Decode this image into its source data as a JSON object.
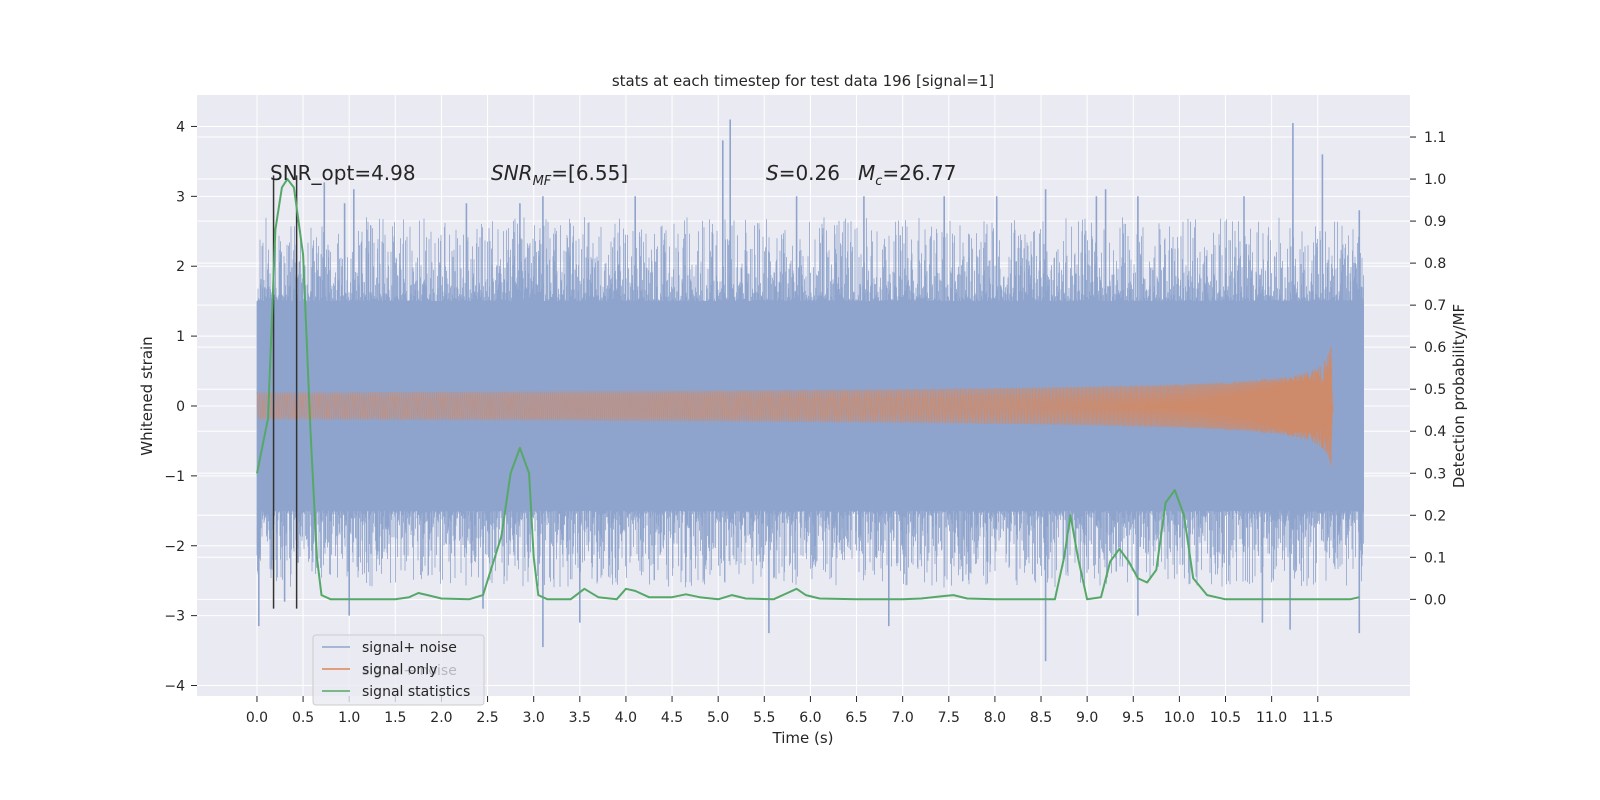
{
  "chart_data": {
    "type": "line",
    "title": "stats at each timestep for test data 196 [signal=1]",
    "xlabel": "Time (s)",
    "ylabel": "Whitened strain",
    "y2label": "Detection probability/MF",
    "xlim": [
      -0.65,
      12.5
    ],
    "ylim": [
      -4.15,
      4.45
    ],
    "y2lim": [
      -0.23,
      1.2
    ],
    "x_ticks": [
      "0.0",
      "0.5",
      "1.0",
      "1.5",
      "2.0",
      "2.5",
      "3.0",
      "3.5",
      "4.0",
      "4.5",
      "5.0",
      "5.5",
      "6.0",
      "6.5",
      "7.0",
      "7.5",
      "8.0",
      "8.5",
      "9.0",
      "9.5",
      "10.0",
      "10.5",
      "11.0",
      "11.5"
    ],
    "y_ticks": [
      "4",
      "3",
      "2",
      "1",
      "0",
      "−1",
      "−2",
      "−3",
      "−4"
    ],
    "y2_ticks": [
      "1.1",
      "1.0",
      "0.9",
      "0.8",
      "0.7",
      "0.6",
      "0.5",
      "0.4",
      "0.3",
      "0.2",
      "0.1",
      "0.0"
    ],
    "grid": true,
    "legend_placement": "lower-left",
    "annotations": {
      "snr_opt": "SNR_opt=4.98",
      "snr_mf_base": "SNR",
      "snr_mf_sub": "MF",
      "snr_mf_val": "=[6.55]",
      "s_base": "S",
      "s_val": "=0.26",
      "mc_base": "M",
      "mc_sub": "c",
      "mc_val": "=26.77"
    },
    "series": [
      {
        "name": "signal+ noise",
        "color": "#8fa4cc",
        "x_range": [
          0.0,
          12.0
        ],
        "envelope": [
          -1.5,
          1.5
        ],
        "peak_highs": [
          [
            0.73,
            3.2
          ],
          [
            0.95,
            2.9
          ],
          [
            1.05,
            3.1
          ],
          [
            2.27,
            2.9
          ],
          [
            2.85,
            2.9
          ],
          [
            3.1,
            3.0
          ],
          [
            4.1,
            3.0
          ],
          [
            5.05,
            3.8
          ],
          [
            5.13,
            4.1
          ],
          [
            5.85,
            3.0
          ],
          [
            6.58,
            3.0
          ],
          [
            7.45,
            3.0
          ],
          [
            8.02,
            3.0
          ],
          [
            8.55,
            3.1
          ],
          [
            9.1,
            3.0
          ],
          [
            9.2,
            3.1
          ],
          [
            9.55,
            3.0
          ],
          [
            10.7,
            3.0
          ],
          [
            11.23,
            4.05
          ],
          [
            11.55,
            3.6
          ],
          [
            11.95,
            2.8
          ]
        ],
        "peak_lows": [
          [
            0.02,
            -3.15
          ],
          [
            0.3,
            -2.8
          ],
          [
            1.0,
            -3.0
          ],
          [
            2.45,
            -2.9
          ],
          [
            3.1,
            -3.45
          ],
          [
            3.5,
            -3.1
          ],
          [
            5.55,
            -3.25
          ],
          [
            6.85,
            -3.15
          ],
          [
            8.55,
            -3.65
          ],
          [
            9.55,
            -3.0
          ],
          [
            10.9,
            -3.1
          ],
          [
            11.2,
            -3.2
          ],
          [
            11.95,
            -3.25
          ]
        ]
      },
      {
        "name": "signal only",
        "color": "#dd8452",
        "x_range": [
          0.0,
          11.67
        ],
        "chirp_peak_time": 11.65,
        "max_amplitude": 1.0
      },
      {
        "name": "signal statistics",
        "color": "#55a868",
        "axis": "y2",
        "points": [
          [
            0.0,
            0.3
          ],
          [
            0.12,
            0.43
          ],
          [
            0.2,
            0.88
          ],
          [
            0.27,
            0.98
          ],
          [
            0.33,
            1.0
          ],
          [
            0.4,
            0.98
          ],
          [
            0.5,
            0.82
          ],
          [
            0.58,
            0.4
          ],
          [
            0.65,
            0.1
          ],
          [
            0.7,
            0.01
          ],
          [
            0.8,
            0.0
          ],
          [
            1.0,
            0.0
          ],
          [
            1.5,
            0.0
          ],
          [
            1.65,
            0.005
          ],
          [
            1.75,
            0.015
          ],
          [
            1.85,
            0.01
          ],
          [
            2.0,
            0.002
          ],
          [
            2.3,
            0.0
          ],
          [
            2.45,
            0.01
          ],
          [
            2.55,
            0.08
          ],
          [
            2.65,
            0.15
          ],
          [
            2.75,
            0.3
          ],
          [
            2.85,
            0.36
          ],
          [
            2.95,
            0.3
          ],
          [
            3.0,
            0.1
          ],
          [
            3.05,
            0.01
          ],
          [
            3.15,
            0.0
          ],
          [
            3.4,
            0.0
          ],
          [
            3.55,
            0.025
          ],
          [
            3.7,
            0.005
          ],
          [
            3.9,
            0.0
          ],
          [
            4.0,
            0.025
          ],
          [
            4.1,
            0.02
          ],
          [
            4.25,
            0.005
          ],
          [
            4.5,
            0.005
          ],
          [
            4.65,
            0.012
          ],
          [
            4.8,
            0.005
          ],
          [
            5.0,
            0.0
          ],
          [
            5.15,
            0.01
          ],
          [
            5.3,
            0.002
          ],
          [
            5.6,
            0.0
          ],
          [
            5.75,
            0.015
          ],
          [
            5.85,
            0.025
          ],
          [
            5.95,
            0.01
          ],
          [
            6.1,
            0.002
          ],
          [
            6.5,
            0.0
          ],
          [
            7.0,
            0.0
          ],
          [
            7.2,
            0.002
          ],
          [
            7.45,
            0.008
          ],
          [
            7.55,
            0.01
          ],
          [
            7.7,
            0.002
          ],
          [
            8.0,
            0.0
          ],
          [
            8.4,
            0.0
          ],
          [
            8.65,
            0.0
          ],
          [
            8.75,
            0.1
          ],
          [
            8.82,
            0.2
          ],
          [
            8.9,
            0.1
          ],
          [
            9.0,
            0.0
          ],
          [
            9.15,
            0.005
          ],
          [
            9.25,
            0.09
          ],
          [
            9.35,
            0.12
          ],
          [
            9.45,
            0.09
          ],
          [
            9.55,
            0.05
          ],
          [
            9.65,
            0.04
          ],
          [
            9.75,
            0.07
          ],
          [
            9.85,
            0.23
          ],
          [
            9.95,
            0.26
          ],
          [
            10.05,
            0.2
          ],
          [
            10.15,
            0.05
          ],
          [
            10.3,
            0.01
          ],
          [
            10.5,
            0.0
          ],
          [
            11.0,
            0.0
          ],
          [
            11.5,
            0.0
          ],
          [
            11.85,
            0.0
          ],
          [
            11.95,
            0.005
          ]
        ]
      }
    ],
    "vertical_markers": [
      {
        "x": 0.18,
        "y_bottom": -2.9,
        "y_top": 3.3,
        "color": "#333333"
      },
      {
        "x": 0.43,
        "y_bottom": -2.9,
        "y_top": 3.3,
        "color": "#333333"
      }
    ],
    "legend": {
      "ghost_text": "signal+ noise"
    }
  }
}
